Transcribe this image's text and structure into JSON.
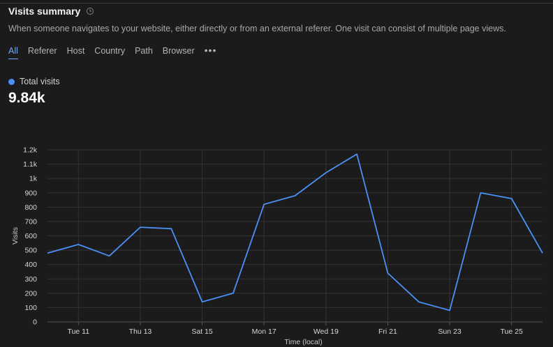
{
  "header": {
    "title": "Visits summary",
    "subtitle": "When someone navigates to your website, either directly or from an external referer. One visit can consist of multiple page views."
  },
  "tabs": [
    {
      "label": "All",
      "active": true
    },
    {
      "label": "Referer",
      "active": false
    },
    {
      "label": "Host",
      "active": false
    },
    {
      "label": "Country",
      "active": false
    },
    {
      "label": "Path",
      "active": false
    },
    {
      "label": "Browser",
      "active": false
    }
  ],
  "more_label": "•••",
  "legend": {
    "label": "Total visits",
    "color": "#4a90f5"
  },
  "total": "9.84k",
  "chart_data": {
    "type": "line",
    "xlabel": "Time (local)",
    "ylabel": "Visits",
    "ylim": [
      0,
      1200
    ],
    "yticks": [
      0,
      100,
      200,
      300,
      400,
      500,
      600,
      700,
      800,
      900,
      1000,
      1100,
      1200
    ],
    "ytick_labels": [
      "0",
      "100",
      "200",
      "300",
      "400",
      "500",
      "600",
      "700",
      "800",
      "900",
      "1k",
      "1.1k",
      "1.2k"
    ],
    "x": [
      "Mon 10",
      "Tue 11",
      "Wed 12",
      "Thu 13",
      "Fri 14",
      "Sat 15",
      "Sun 16",
      "Mon 17",
      "Tue 18",
      "Wed 19",
      "Thu 20",
      "Fri 21",
      "Sat 22",
      "Sun 23",
      "Mon 24",
      "Tue 25",
      "Wed 26"
    ],
    "xtick_labels": [
      "Tue 11",
      "Thu 13",
      "Sat 15",
      "Mon 17",
      "Wed 19",
      "Fri 21",
      "Sun 23",
      "Tue 25"
    ],
    "grid": true,
    "series": [
      {
        "name": "Total visits",
        "color": "#4a90f5",
        "values": [
          480,
          540,
          460,
          660,
          650,
          140,
          200,
          820,
          880,
          1040,
          1170,
          340,
          140,
          80,
          900,
          860,
          480
        ]
      }
    ]
  }
}
